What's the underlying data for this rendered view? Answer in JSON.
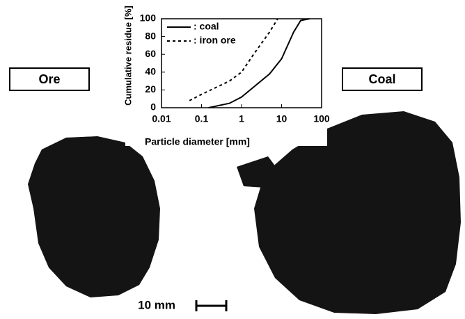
{
  "chart_data": {
    "type": "line",
    "xlabel": "Particle diameter  [mm]",
    "ylabel": "Cumulative residue [%]",
    "xscale": "log",
    "xlim": [
      0.01,
      100
    ],
    "xticks": [
      0.01,
      0.1,
      1,
      10,
      100
    ],
    "ylim": [
      0,
      100
    ],
    "yticks": [
      0,
      20,
      40,
      60,
      80,
      100
    ],
    "grid": false,
    "legend": "upper left",
    "series": [
      {
        "name": ": coal",
        "color": "#000000",
        "dash": "solid",
        "x": [
          0.15,
          0.5,
          1,
          5,
          10,
          20,
          30,
          50
        ],
        "values": [
          0,
          5,
          12,
          38,
          55,
          85,
          98,
          100
        ]
      },
      {
        "name": ": iron ore",
        "color": "#000000",
        "dash": "dashed",
        "x": [
          0.05,
          0.1,
          0.5,
          1,
          2,
          5,
          8
        ],
        "values": [
          8,
          15,
          30,
          40,
          60,
          85,
          100
        ]
      }
    ]
  },
  "labels": {
    "ore": "Ore",
    "coal": "Coal",
    "scale_bar": "10 mm"
  }
}
